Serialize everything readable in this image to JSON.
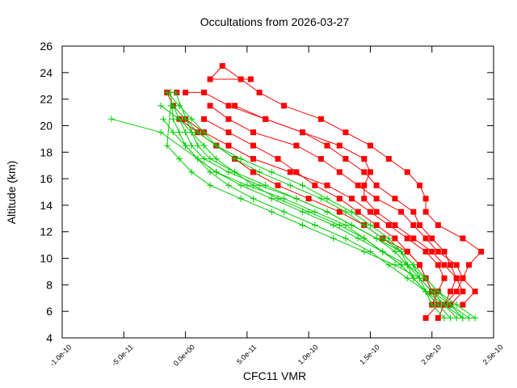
{
  "chart_data": {
    "type": "line",
    "title": "Occultations from 2026-03-27",
    "xlabel": "CFC11 VMR",
    "ylabel": "Altitude (km)",
    "xlim": [
      -1e-10,
      2.5e-10
    ],
    "ylim": [
      4,
      26
    ],
    "x_tick_values": [
      -1e-10,
      -5e-11,
      0.0,
      5e-11,
      1e-10,
      1.5e-10,
      2e-10,
      2.5e-10
    ],
    "x_tick_labels": [
      "-1.0e-10",
      "-5.0e-11",
      "0.0e+00",
      "5.0e-11",
      "1.0e-10",
      "1.5e-10",
      "2.0e-10",
      "2.5e-10"
    ],
    "y_tick_values": [
      4,
      6,
      8,
      10,
      12,
      14,
      16,
      18,
      20,
      22,
      24,
      26
    ],
    "y_tick_labels": [
      "4",
      "6",
      "8",
      "10",
      "12",
      "14",
      "16",
      "18",
      "20",
      "22",
      "24",
      "26"
    ],
    "grid": false,
    "legend": "none",
    "series": [
      {
        "name": "red-1",
        "color": "#ff0000",
        "marker": "square",
        "x": [
          2.1e-10,
          2.2e-10,
          2.25e-10,
          2.2e-10,
          2.05e-10,
          1.95e-10,
          1.85e-10,
          1.75e-10,
          1.55e-10,
          1.4e-10,
          1.25e-10,
          1.1e-10,
          9e-11,
          5.5e-11,
          3.5e-11,
          2e-11
        ],
        "y": [
          6.5,
          7.5,
          8.5,
          9.5,
          10.5,
          11.5,
          12.5,
          13.5,
          14.5,
          15.5,
          16.5,
          17.5,
          18.5,
          19.5,
          20.5,
          21.5
        ]
      },
      {
        "name": "red-2",
        "color": "#ff0000",
        "marker": "square",
        "x": [
          2.15e-10,
          2.25e-10,
          2.2e-10,
          2.15e-10,
          2.1e-10,
          2e-10,
          1.9e-10,
          1.85e-10,
          1.7e-10,
          1.55e-10,
          1.45e-10,
          1.3e-10,
          1.15e-10,
          9.5e-11,
          6.5e-11,
          4e-11
        ],
        "y": [
          6.5,
          7.5,
          8.5,
          9.5,
          10.5,
          11.5,
          12.5,
          13.5,
          14.5,
          15.5,
          16.5,
          17.5,
          18.5,
          19.5,
          20.5,
          21.5
        ]
      },
      {
        "name": "red-3",
        "color": "#ff0000",
        "marker": "square",
        "x": [
          2.25e-10,
          2.35e-10,
          2.25e-10,
          2.3e-10,
          2.4e-10,
          2.25e-10,
          2.05e-10,
          1.95e-10,
          1.95e-10,
          1.9e-10,
          1.8e-10,
          1.65e-10,
          1.5e-10,
          1.3e-10,
          1.1e-10,
          8e-11,
          6e-11,
          4.5e-11,
          3e-11,
          2e-11,
          5.3e-11
        ],
        "y": [
          6.5,
          7.5,
          8.5,
          9.5,
          10.5,
          11.5,
          12.5,
          13.5,
          14.5,
          15.5,
          16.5,
          17.5,
          18.5,
          19.5,
          20.5,
          21.5,
          22.5,
          23.5,
          24.5,
          23.5,
          23.5
        ]
      },
      {
        "name": "red-4",
        "color": "#ff0000",
        "marker": "square",
        "x": [
          1.95e-10,
          2.05e-10,
          2e-10,
          1.95e-10,
          1.9e-10,
          1.8e-10,
          1.7e-10,
          1.55e-10,
          1.4e-10,
          1.25e-10,
          1.05e-10,
          9e-11,
          7.5e-11,
          5.5e-11,
          3.5e-11,
          1.5e-11
        ],
        "y": [
          5.5,
          6.5,
          7.5,
          8.5,
          9.5,
          10.5,
          11.5,
          12.5,
          13.5,
          14.5,
          15.5,
          16.5,
          17.5,
          18.5,
          19.5,
          20.5
        ]
      },
      {
        "name": "red-5",
        "color": "#ff0000",
        "marker": "square",
        "x": [
          2.05e-10,
          2.1e-10,
          2e-10,
          1.95e-10,
          1.9e-10,
          1.8e-10,
          1.6e-10,
          1.45e-10,
          1.25e-10,
          1e-10,
          7.5e-11,
          5.5e-11,
          4e-11,
          2.5e-11,
          1e-11,
          -5e-12
        ],
        "y": [
          5.5,
          6.5,
          7.5,
          8.5,
          9.5,
          10.5,
          11.5,
          12.5,
          13.5,
          14.5,
          15.5,
          16.5,
          17.5,
          18.5,
          19.5,
          20.5
        ]
      },
      {
        "name": "red-6",
        "color": "#ff0000",
        "marker": "square",
        "x": [
          2e-10,
          2.05e-10,
          2.1e-10,
          2.05e-10,
          1.95e-10,
          1.8e-10,
          1.65e-10,
          1.5e-10,
          1.35e-10,
          1.15e-10,
          8.5e-11,
          5.5e-11,
          3.5e-11,
          1.5e-11,
          0.0,
          -1e-11,
          -1.5e-11,
          -7e-12
        ],
        "y": [
          6.5,
          7.5,
          8.5,
          9.5,
          10.5,
          11.5,
          12.5,
          13.5,
          14.5,
          15.5,
          16.5,
          17.5,
          18.5,
          19.5,
          20.5,
          21.5,
          22.5,
          22.5
        ]
      },
      {
        "name": "red-7",
        "color": "#ff0000",
        "marker": "square",
        "x": [
          2.1e-10,
          2.15e-10,
          2.2e-10,
          2.1e-10,
          2e-10,
          1.85e-10,
          1.7e-10,
          1.55e-10,
          1.45e-10,
          1.45e-10,
          1.5e-10,
          1.45e-10,
          1.25e-10,
          9.5e-11,
          6.5e-11,
          3.5e-11,
          1.5e-11,
          0.0
        ],
        "y": [
          6.5,
          7.5,
          8.5,
          9.5,
          10.5,
          11.5,
          12.5,
          13.5,
          14.5,
          15.5,
          16.5,
          17.5,
          18.5,
          19.5,
          20.5,
          21.5,
          22.5,
          22.5
        ]
      }
    ],
    "green_series": [
      {
        "name": "green-1",
        "color": "#00cc00",
        "marker": "plus",
        "x": [
          2.35e-10,
          2.2e-10,
          2.05e-10,
          1.95e-10,
          1.8e-10,
          1.6e-10,
          1.4e-10,
          1.2e-10,
          9.5e-11,
          7e-11,
          4.5e-11,
          2.5e-11,
          1e-11,
          -2e-11,
          -6e-11
        ],
        "y": [
          5.5,
          6.5,
          7.5,
          8.5,
          9.5,
          10.5,
          11.5,
          12.5,
          13.5,
          14.5,
          15.5,
          16.5,
          17.5,
          19.5,
          20.5
        ]
      },
      {
        "name": "green-2",
        "color": "#00cc00",
        "marker": "plus",
        "x": [
          2.3e-10,
          2.15e-10,
          2e-10,
          1.9e-10,
          1.7e-10,
          1.45e-10,
          1.2e-10,
          9.5e-11,
          7e-11,
          4.5e-11,
          2e-11,
          5e-12,
          -5e-12,
          -1.5e-11,
          -1.2e-11
        ],
        "y": [
          5.5,
          6.5,
          7.5,
          8.5,
          9.5,
          10.5,
          11.5,
          12.5,
          13.5,
          14.5,
          15.5,
          16.5,
          17.5,
          18.5,
          21.5
        ]
      },
      {
        "name": "green-3",
        "color": "#00cc00",
        "marker": "plus",
        "x": [
          2.25e-10,
          2.1e-10,
          1.95e-10,
          1.8e-10,
          1.65e-10,
          1.5e-10,
          1.3e-10,
          1.05e-10,
          8e-11,
          5.5e-11,
          3.5e-11,
          2e-11,
          1e-11,
          0.0,
          -5e-12,
          -1e-11,
          -1.2e-11
        ],
        "y": [
          5.5,
          6.5,
          7.5,
          8.5,
          9.5,
          10.5,
          11.5,
          12.5,
          13.5,
          14.5,
          15.5,
          16.5,
          17.5,
          18.5,
          19.5,
          20.5,
          22.5
        ]
      },
      {
        "name": "green-4",
        "color": "#00cc00",
        "marker": "plus",
        "x": [
          2.15e-10,
          2.05e-10,
          1.95e-10,
          1.85e-10,
          1.75e-10,
          1.6e-10,
          1.45e-10,
          1.25e-10,
          1e-10,
          7.5e-11,
          5.5e-11,
          4e-11,
          2.5e-11,
          1.5e-11,
          5e-12,
          -5e-12,
          -2e-11
        ],
        "y": [
          5.5,
          6.5,
          7.5,
          8.5,
          9.5,
          10.5,
          11.5,
          12.5,
          13.5,
          14.5,
          15.5,
          16.5,
          17.5,
          18.5,
          19.5,
          20.5,
          21.5
        ]
      },
      {
        "name": "green-5",
        "color": "#00cc00",
        "marker": "plus",
        "x": [
          2.05e-10,
          1.95e-10,
          1.9e-10,
          1.85e-10,
          1.75e-10,
          1.55e-10,
          1.35e-10,
          1.15e-10,
          9e-11,
          6e-11,
          3.5e-11,
          1.5e-11,
          5e-12,
          0.0,
          -5e-12,
          -1e-11
        ],
        "y": [
          6.5,
          7.5,
          8.5,
          9.5,
          10.5,
          11.5,
          12.5,
          13.5,
          14.5,
          15.5,
          16.5,
          17.5,
          18.5,
          19.5,
          20.5,
          21.5
        ]
      },
      {
        "name": "green-6",
        "color": "#00cc00",
        "marker": "plus",
        "x": [
          2e-10,
          1.95e-10,
          1.85e-10,
          1.8e-10,
          1.75e-10,
          1.65e-10,
          1.5e-10,
          1.35e-10,
          1.15e-10,
          9.5e-11,
          7e-11,
          4.5e-11,
          2.5e-11,
          1e-11,
          0.0,
          -1e-11
        ],
        "y": [
          6.5,
          7.5,
          8.5,
          9.5,
          10.5,
          11.5,
          12.5,
          13.5,
          14.5,
          15.5,
          16.5,
          17.5,
          18.5,
          19.5,
          20.5,
          21.5
        ]
      },
      {
        "name": "green-7",
        "color": "#00cc00",
        "marker": "plus",
        "x": [
          2.2e-10,
          2.1e-10,
          2e-10,
          1.9e-10,
          1.8e-10,
          1.7e-10,
          1.55e-10,
          1.35e-10,
          1.15e-10,
          9e-11,
          6.5e-11,
          4e-11,
          2e-11,
          1e-11,
          5e-12,
          -8e-12
        ],
        "y": [
          5.5,
          6.5,
          7.5,
          8.5,
          9.5,
          10.5,
          11.5,
          12.5,
          13.5,
          14.5,
          15.5,
          16.5,
          17.5,
          18.5,
          19.5,
          22.5
        ]
      },
      {
        "name": "green-8",
        "color": "#00cc00",
        "marker": "plus",
        "x": [
          2.25e-10,
          2.15e-10,
          2.05e-10,
          1.95e-10,
          1.85e-10,
          1.75e-10,
          1.6e-10,
          1.45e-10,
          1.3e-10,
          1.1e-10,
          8.5e-11,
          6e-11,
          4e-11,
          2.5e-11,
          1.5e-11,
          5e-12,
          -5e-12,
          -1.5e-11
        ],
        "y": [
          5.5,
          6.5,
          7.5,
          8.5,
          9.5,
          10.5,
          11.5,
          12.5,
          13.5,
          14.5,
          15.5,
          16.5,
          17.5,
          18.5,
          19.5,
          20.5,
          21.5,
          22.5
        ]
      },
      {
        "name": "green-9",
        "color": "#00cc00",
        "marker": "plus",
        "x": [
          2.1e-10,
          2e-10,
          1.95e-10,
          1.85e-10,
          1.75e-10,
          1.6e-10,
          1.45e-10,
          1.3e-10,
          1.05e-10,
          8e-11,
          5e-11,
          2.5e-11,
          1e-11,
          0.0,
          -1e-11,
          -1.8e-11
        ],
        "y": [
          5.5,
          6.5,
          7.5,
          8.5,
          9.5,
          10.5,
          11.5,
          12.5,
          13.5,
          14.5,
          15.5,
          16.5,
          17.5,
          18.5,
          19.5,
          20.5
        ]
      }
    ]
  }
}
